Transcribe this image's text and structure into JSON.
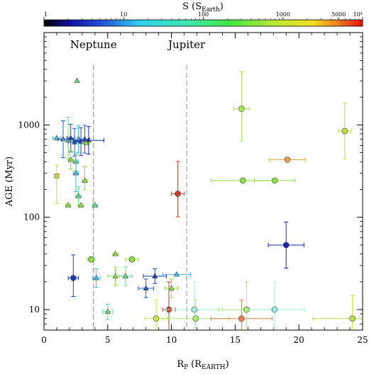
{
  "chart_data": {
    "type": "scatter",
    "xlabel": "R",
    "xlabel_sub": "P",
    "xlabel_units": "(R",
    "xlabel_units_sub": "EARTH",
    "xlabel_close": ")",
    "ylabel": "AGE (Myr)",
    "xlim": [
      0,
      25
    ],
    "ylim": [
      6,
      10000
    ],
    "yscale": "log",
    "x_ticks": [
      0,
      5,
      10,
      15,
      20,
      25
    ],
    "y_ticks": [
      10,
      100,
      1000
    ],
    "grid": false,
    "colorbar": {
      "title": "S (S",
      "title_sub": "Earth",
      "title_close": ")",
      "scale": "log",
      "range": [
        1,
        10000
      ],
      "tick_labels": [
        "1",
        "10",
        "100",
        "1000",
        "5000",
        "10⁴"
      ],
      "tick_values": [
        1,
        10,
        100,
        1000,
        5000,
        10000
      ]
    },
    "reference_lines": [
      {
        "label": "Neptune",
        "x": 3.88
      },
      {
        "label": "Jupiter",
        "x": 11.2
      }
    ],
    "series": [
      {
        "marker": "circle",
        "points": [
          {
            "x": 2.3,
            "y": 22,
            "xerr": 0.4,
            "yerr": [
              0.2,
              0.25
            ],
            "color": "#1f3fb0"
          },
          {
            "x": 3.7,
            "y": 35,
            "xerr": 0.3,
            "yerr": [
              0,
              0
            ],
            "color": "#8ee040"
          },
          {
            "x": 6.9,
            "y": 35,
            "xerr": 0.5,
            "yerr": [
              0,
              0
            ],
            "color": "#8ee040"
          },
          {
            "x": 8.8,
            "y": 8,
            "xerr": 0.9,
            "yerr": [
              0.2,
              0.2
            ],
            "color": "#c9e84a"
          },
          {
            "x": 9.8,
            "y": 10,
            "xerr": 0.5,
            "yerr": [
              0.3,
              0.3
            ],
            "color": "#d43a2a"
          },
          {
            "x": 10.5,
            "y": 180,
            "xerr": 0.5,
            "yerr": [
              0.25,
              0.35
            ],
            "color": "#d43a2a"
          },
          {
            "x": 11.8,
            "y": 10,
            "xerr": 2.2,
            "yerr": [
              0.2,
              0.3
            ],
            "color": "#9ff0e0"
          },
          {
            "x": 11.9,
            "y": 8,
            "xerr": 2.6,
            "yerr": [
              0.2,
              0.2
            ],
            "color": "#a6ec6a"
          },
          {
            "x": 15.5,
            "y": 8,
            "xerr": 2.4,
            "yerr": [
              0.2,
              0.2
            ],
            "color": "#e87a50"
          },
          {
            "x": 15.5,
            "y": 1500,
            "xerr": 0.6,
            "yerr": [
              0.35,
              0.4
            ],
            "color": "#a6e84a"
          },
          {
            "x": 15.6,
            "y": 250,
            "xerr": 2.5,
            "yerr": [
              0,
              0
            ],
            "color": "#8ee040"
          },
          {
            "x": 15.9,
            "y": 10,
            "xerr": 2.2,
            "yerr": [
              0.25,
              0.3
            ],
            "color": "#a6ec6a"
          },
          {
            "x": 18.1,
            "y": 250,
            "xerr": 1.6,
            "yerr": [
              0,
              0
            ],
            "color": "#8ee040"
          },
          {
            "x": 18.1,
            "y": 10,
            "xerr": 2.3,
            "yerr": [
              0.2,
              0.3
            ],
            "color": "#9ff0e0"
          },
          {
            "x": 19.1,
            "y": 420,
            "xerr": 1.4,
            "yerr": [
              0,
              0
            ],
            "color": "#e8a048"
          },
          {
            "x": 19.0,
            "y": 50,
            "xerr": 1.4,
            "yerr": [
              0.25,
              0.25
            ],
            "color": "#1a24a8"
          },
          {
            "x": 23.6,
            "y": 860,
            "xerr": 0.5,
            "yerr": [
              0.3,
              0.3
            ],
            "color": "#b8e040"
          },
          {
            "x": 24.2,
            "y": 8,
            "xerr": 3.1,
            "yerr": [
              0.2,
              0.25
            ],
            "color": "#b8e040"
          }
        ]
      },
      {
        "marker": "triangle",
        "points": [
          {
            "x": 2.6,
            "y": 3000,
            "xerr": 0,
            "yerr": [
              0,
              0
            ],
            "color": "#6ed890"
          },
          {
            "x": 1.0,
            "y": 720,
            "xerr": 0.3,
            "yerr": [
              0,
              0
            ],
            "color": "#4ab8e8"
          },
          {
            "x": 1.5,
            "y": 700,
            "xerr": 0.4,
            "yerr": [
              0.2,
              0.2
            ],
            "color": "#2a58c8"
          },
          {
            "x": 1.9,
            "y": 680,
            "xerr": 0.4,
            "yerr": [
              0.2,
              0.25
            ],
            "color": "#6ed890"
          },
          {
            "x": 2.1,
            "y": 720,
            "xerr": 0.3,
            "yerr": [
              0.15,
              0.15
            ],
            "color": "#1f3fb0"
          },
          {
            "x": 2.4,
            "y": 650,
            "xerr": 0.5,
            "yerr": [
              0.15,
              0.15
            ],
            "color": "#2a58c8"
          },
          {
            "x": 2.7,
            "y": 700,
            "xerr": 0.4,
            "yerr": [
              0.15,
              0.15
            ],
            "color": "#4ab8e8"
          },
          {
            "x": 2.9,
            "y": 660,
            "xerr": 0.5,
            "yerr": [
              0.15,
              0.15
            ],
            "color": "#1f3fb0"
          },
          {
            "x": 3.2,
            "y": 700,
            "xerr": 0.4,
            "yerr": [
              0.15,
              0.15
            ],
            "color": "#2a58c8"
          },
          {
            "x": 3.5,
            "y": 680,
            "xerr": 1.2,
            "yerr": [
              0.15,
              0.15
            ],
            "color": "#1a24a8"
          },
          {
            "x": 3.3,
            "y": 640,
            "xerr": 0.3,
            "yerr": [
              0,
              0
            ],
            "color": "#8ee040"
          },
          {
            "x": 2.1,
            "y": 420,
            "xerr": 0.2,
            "yerr": [
              0.1,
              0.1
            ],
            "color": "#8ee040"
          },
          {
            "x": 2.5,
            "y": 400,
            "xerr": 0.2,
            "yerr": [
              0.1,
              0.1
            ],
            "color": "#6ed890"
          },
          {
            "x": 2.5,
            "y": 300,
            "xerr": 0.2,
            "yerr": [
              0.2,
              0.2
            ],
            "color": "#4ab8e8"
          },
          {
            "x": 3.2,
            "y": 250,
            "xerr": 0.2,
            "yerr": [
              0.1,
              0.15
            ],
            "color": "#8ee040"
          },
          {
            "x": 2.7,
            "y": 170,
            "xerr": 0.2,
            "yerr": [
              0.1,
              0.1
            ],
            "color": "#6ed890"
          },
          {
            "x": 1.9,
            "y": 135,
            "xerr": 0.2,
            "yerr": [
              0,
              0
            ],
            "color": "#8ee040"
          },
          {
            "x": 2.9,
            "y": 135,
            "xerr": 0.2,
            "yerr": [
              0,
              0
            ],
            "color": "#8ee040"
          },
          {
            "x": 4.0,
            "y": 135,
            "xerr": 0.2,
            "yerr": [
              0,
              0
            ],
            "color": "#6ed890"
          },
          {
            "x": 5.6,
            "y": 40,
            "xerr": 0.2,
            "yerr": [
              0,
              0
            ],
            "color": "#8ee040"
          },
          {
            "x": 4.1,
            "y": 22,
            "xerr": 0.3,
            "yerr": [
              0.1,
              0.1
            ],
            "color": "#4ab8e8"
          },
          {
            "x": 5.6,
            "y": 23,
            "xerr": 0.6,
            "yerr": [
              0.1,
              0.1
            ],
            "color": "#8ee040"
          },
          {
            "x": 6.4,
            "y": 23,
            "xerr": 0.5,
            "yerr": [
              0.1,
              0.1
            ],
            "color": "#6ed890"
          },
          {
            "x": 8.0,
            "y": 17,
            "xerr": 0.6,
            "yerr": [
              0.1,
              0.1
            ],
            "color": "#2a58c8"
          },
          {
            "x": 8.7,
            "y": 23,
            "xerr": 0.9,
            "yerr": [
              0.08,
              0.08
            ],
            "color": "#1f3fb0"
          },
          {
            "x": 10.0,
            "y": 17,
            "xerr": 0.5,
            "yerr": [
              0.1,
              0.1
            ],
            "color": "#8ee040"
          },
          {
            "x": 10.4,
            "y": 24,
            "xerr": 1.1,
            "yerr": [
              0,
              0
            ],
            "color": "#4ab8e8"
          },
          {
            "x": 5.0,
            "y": 9.5,
            "xerr": 0.4,
            "yerr": [
              0.08,
              0.08
            ],
            "color": "#6ed890"
          }
        ]
      },
      {
        "marker": "square",
        "points": [
          {
            "x": 1.0,
            "y": 280,
            "xerr": 0,
            "yerr": [
              0.3,
              0.12
            ],
            "color": "#d0d840"
          }
        ]
      }
    ]
  }
}
